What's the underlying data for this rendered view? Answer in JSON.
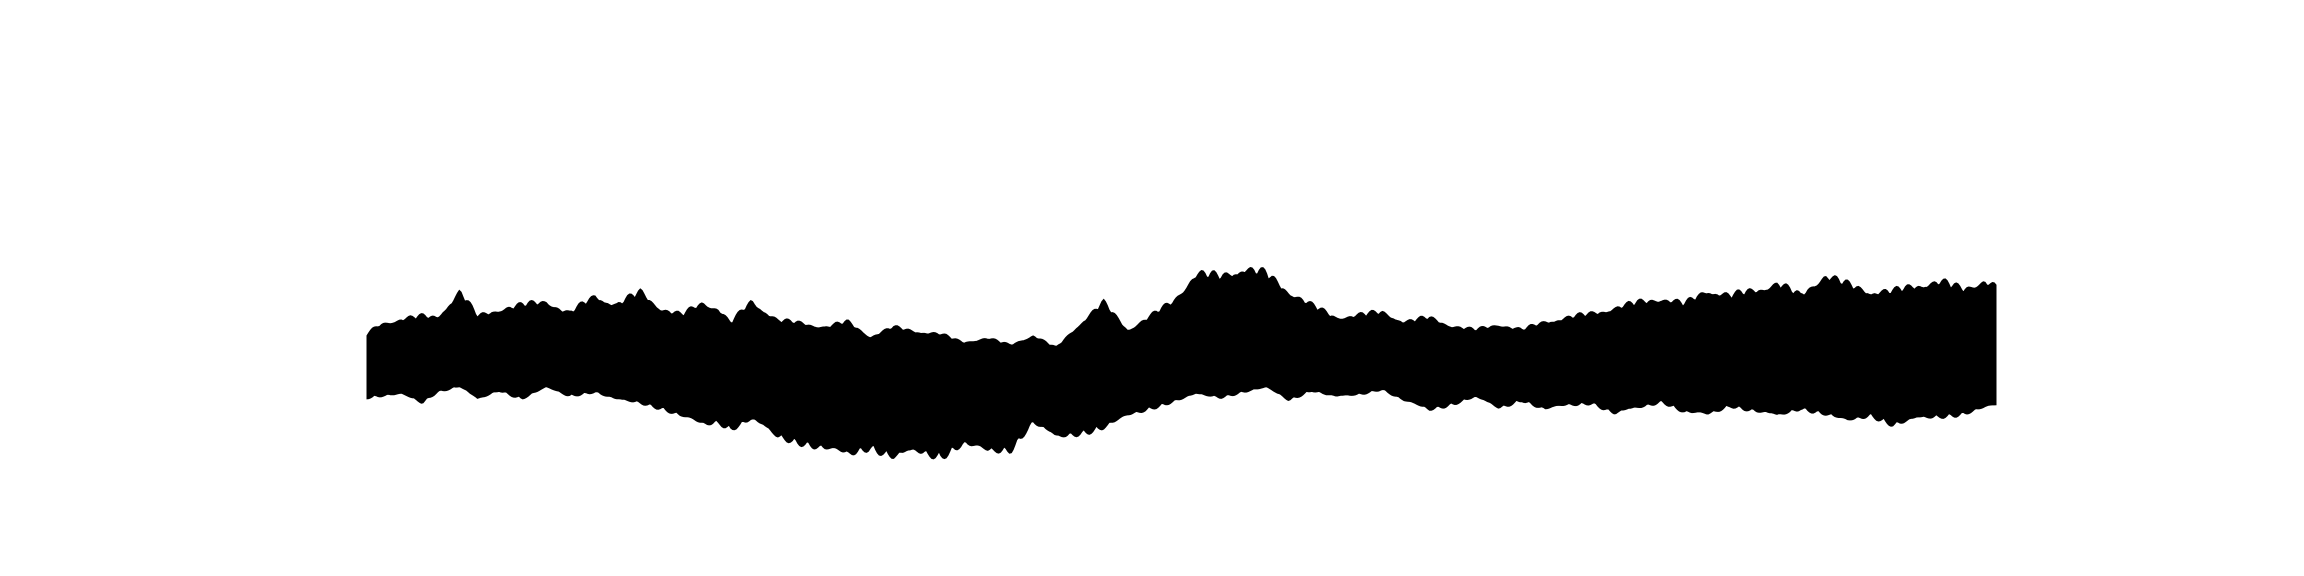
{
  "chart_data": {
    "type": "area",
    "title": "",
    "xlabel": "",
    "ylabel": "",
    "axes_visible": false,
    "grid": false,
    "legend": "none",
    "fill_color": "#000000",
    "background_color": "#ffffff",
    "x_range": [
      0,
      1
    ],
    "ylim": [
      -1,
      1
    ],
    "envelope": {
      "x": [
        0.0,
        0.008,
        0.021,
        0.034,
        0.043,
        0.057,
        0.068,
        0.081,
        0.095,
        0.11,
        0.124,
        0.14,
        0.153,
        0.168,
        0.181,
        0.193,
        0.206,
        0.216,
        0.223,
        0.236,
        0.252,
        0.267,
        0.281,
        0.295,
        0.309,
        0.323,
        0.337,
        0.352,
        0.366,
        0.381,
        0.395,
        0.409,
        0.423,
        0.438,
        0.452,
        0.467,
        0.481,
        0.495,
        0.509,
        0.524,
        0.538,
        0.552,
        0.566,
        0.58,
        0.595,
        0.609,
        0.623,
        0.637,
        0.652,
        0.666,
        0.68,
        0.695,
        0.709,
        0.723,
        0.737,
        0.752,
        0.766,
        0.78,
        0.795,
        0.809,
        0.823,
        0.837,
        0.852,
        0.866,
        0.88,
        0.895,
        0.909,
        0.923,
        0.937,
        0.952,
        0.966,
        0.98,
        0.993,
        1.0
      ],
      "upper": [
        0.24,
        0.31,
        0.35,
        0.37,
        0.36,
        0.55,
        0.37,
        0.42,
        0.45,
        0.48,
        0.39,
        0.52,
        0.45,
        0.55,
        0.42,
        0.38,
        0.47,
        0.42,
        0.32,
        0.48,
        0.34,
        0.32,
        0.29,
        0.33,
        0.22,
        0.29,
        0.26,
        0.24,
        0.18,
        0.21,
        0.16,
        0.23,
        0.14,
        0.32,
        0.47,
        0.27,
        0.37,
        0.48,
        0.68,
        0.66,
        0.72,
        0.68,
        0.55,
        0.45,
        0.36,
        0.38,
        0.4,
        0.33,
        0.36,
        0.3,
        0.27,
        0.31,
        0.27,
        0.33,
        0.36,
        0.39,
        0.43,
        0.47,
        0.5,
        0.46,
        0.56,
        0.52,
        0.56,
        0.61,
        0.52,
        0.67,
        0.6,
        0.55,
        0.55,
        0.6,
        0.62,
        0.57,
        0.63,
        0.58
      ],
      "lower": [
        -0.22,
        -0.21,
        -0.2,
        -0.26,
        -0.18,
        -0.14,
        -0.24,
        -0.17,
        -0.23,
        -0.15,
        -0.21,
        -0.18,
        -0.24,
        -0.26,
        -0.3,
        -0.36,
        -0.42,
        -0.4,
        -0.45,
        -0.38,
        -0.51,
        -0.55,
        -0.6,
        -0.64,
        -0.58,
        -0.66,
        -0.62,
        -0.65,
        -0.56,
        -0.62,
        -0.6,
        -0.4,
        -0.52,
        -0.48,
        -0.44,
        -0.36,
        -0.3,
        -0.25,
        -0.2,
        -0.22,
        -0.18,
        -0.15,
        -0.24,
        -0.17,
        -0.22,
        -0.2,
        -0.16,
        -0.25,
        -0.31,
        -0.27,
        -0.22,
        -0.3,
        -0.24,
        -0.31,
        -0.28,
        -0.26,
        -0.34,
        -0.3,
        -0.25,
        -0.33,
        -0.35,
        -0.28,
        -0.32,
        -0.36,
        -0.3,
        -0.34,
        -0.4,
        -0.35,
        -0.42,
        -0.38,
        -0.36,
        -0.34,
        -0.3,
        -0.28
      ]
    }
  }
}
